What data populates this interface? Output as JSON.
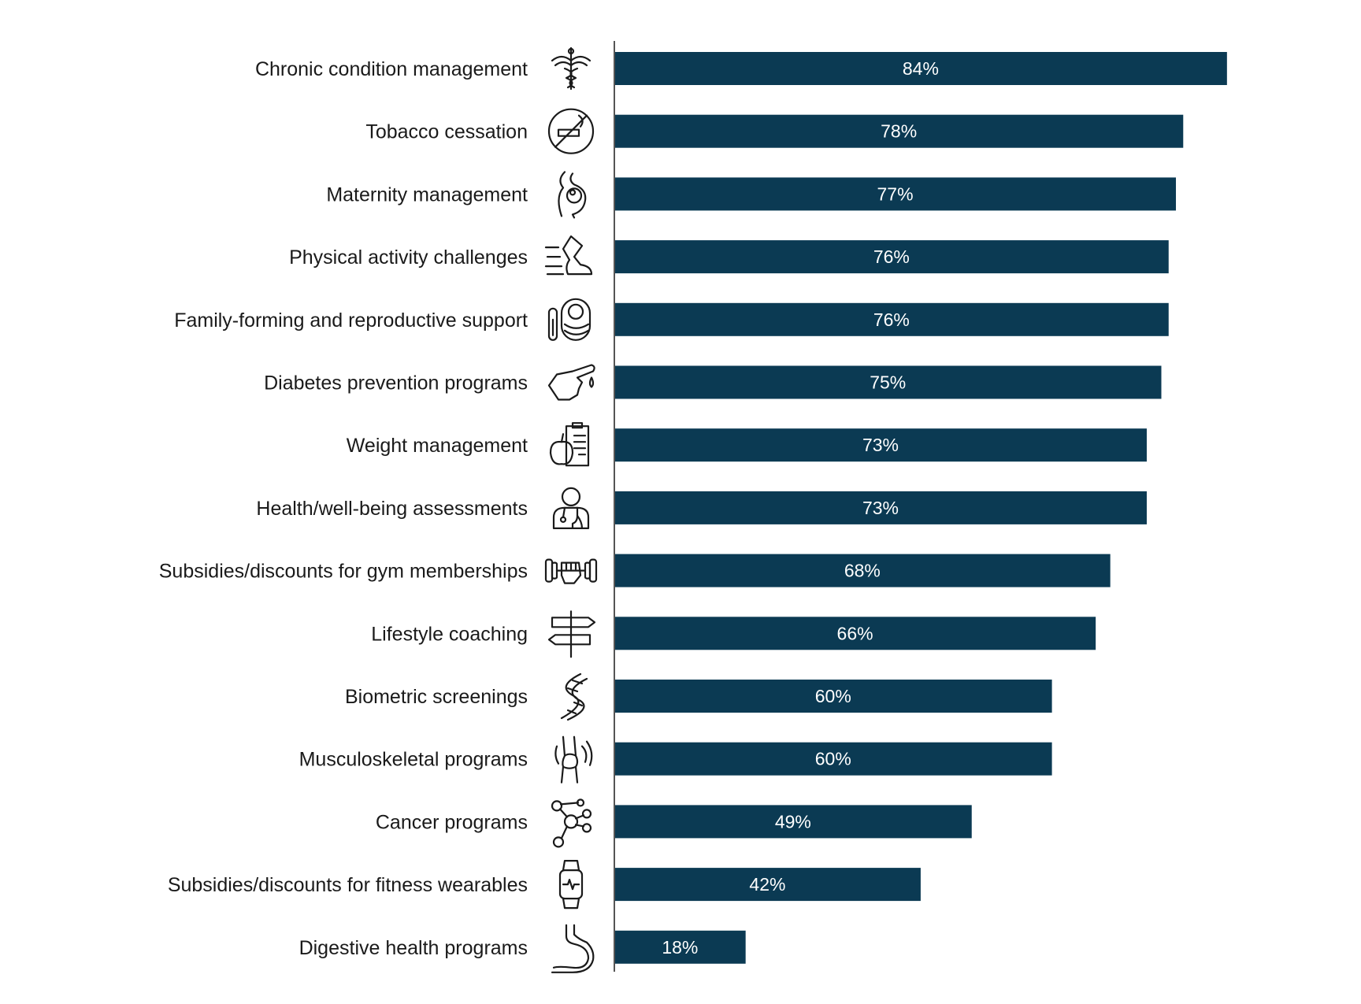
{
  "chart_data": {
    "type": "bar",
    "orientation": "horizontal",
    "categories": [
      "Chronic condition management",
      "Tobacco cessation",
      "Maternity management",
      "Physical activity challenges",
      "Family-forming and reproductive support",
      "Diabetes prevention programs",
      "Weight management",
      "Health/well-being assessments",
      "Subsidies/discounts for gym memberships",
      "Lifestyle coaching",
      "Biometric screenings",
      "Musculoskeletal programs",
      "Cancer programs",
      "Subsidies/discounts for fitness wearables",
      "Digestive health programs"
    ],
    "values": [
      84,
      78,
      77,
      76,
      76,
      75,
      73,
      73,
      68,
      66,
      60,
      60,
      49,
      42,
      18
    ],
    "value_labels": [
      "84%",
      "78%",
      "77%",
      "76%",
      "76%",
      "75%",
      "73%",
      "73%",
      "68%",
      "66%",
      "60%",
      "60%",
      "49%",
      "42%",
      "18%"
    ],
    "icons": [
      "caduceus-icon",
      "no-smoking-icon",
      "pregnancy-icon",
      "running-shoe-icon",
      "fertility-lab-icon",
      "finger-blood-drop-icon",
      "apple-clipboard-icon",
      "doctor-stethoscope-icon",
      "dumbbell-fist-icon",
      "signpost-icon",
      "dna-icon",
      "knee-joint-icon",
      "molecule-icon",
      "smartwatch-icon",
      "stomach-icon"
    ],
    "xlim": [
      0,
      100
    ],
    "grid": false,
    "legend": "none",
    "colors": {
      "bar": "#0b3a53",
      "axis": "#555555",
      "label": "#1a1a1a",
      "value_text": "#ffffff"
    }
  }
}
